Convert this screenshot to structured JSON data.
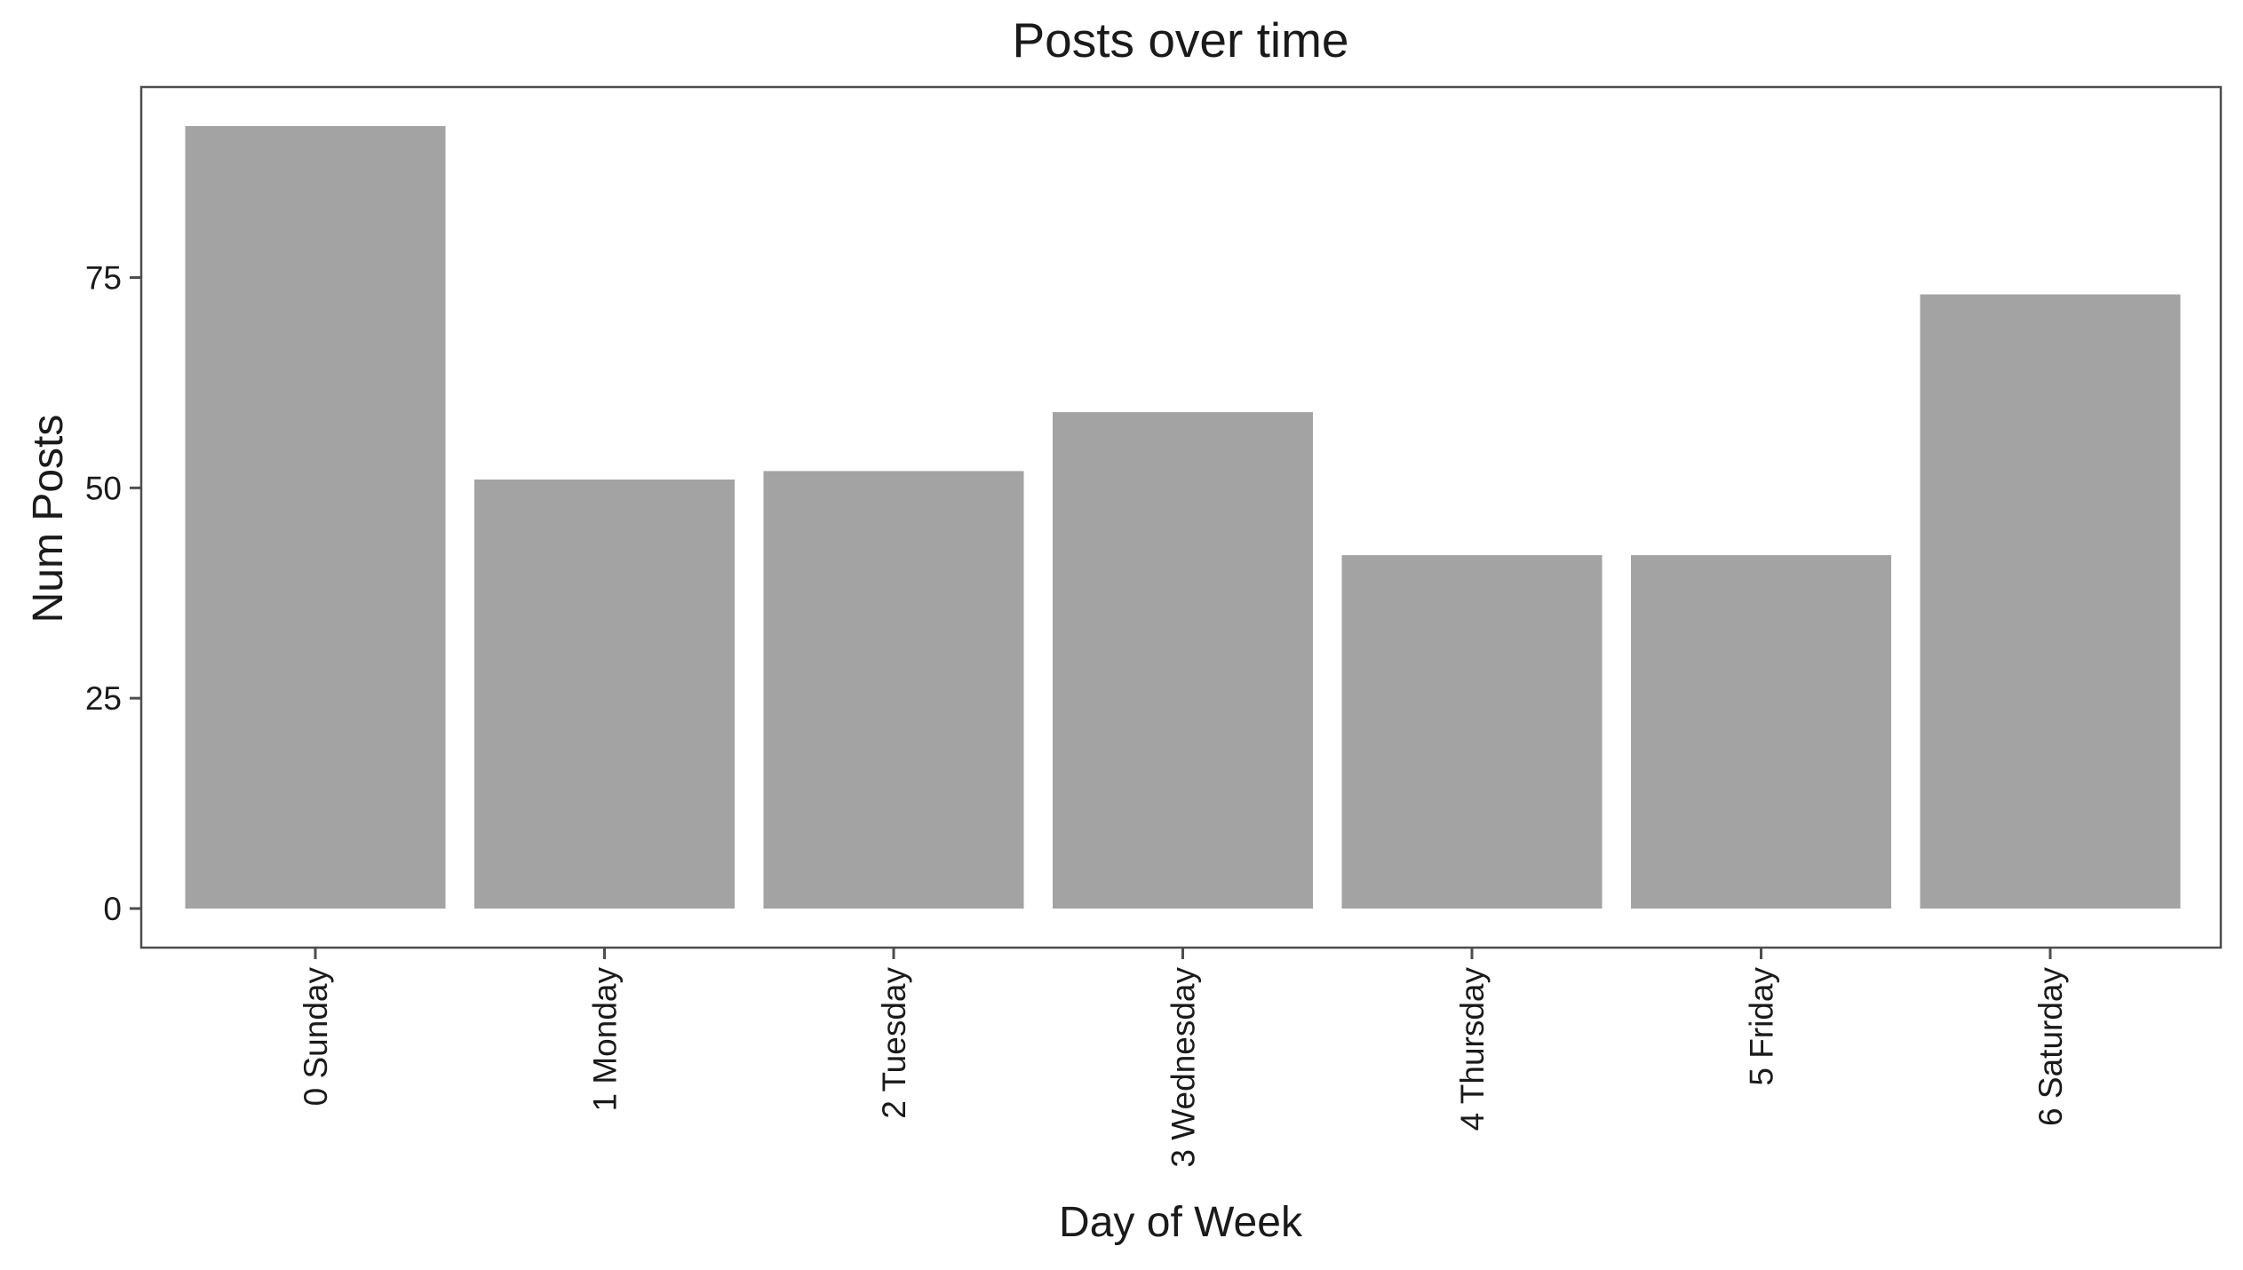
{
  "chart_data": {
    "type": "bar",
    "title": "Posts over time",
    "xlabel": "Day of Week",
    "ylabel": "Num Posts",
    "categories": [
      "0 Sunday",
      "1 Monday",
      "2 Tuesday",
      "3 Wednesday",
      "4 Thursday",
      "5 Friday",
      "6 Saturday"
    ],
    "values": [
      93,
      51,
      52,
      59,
      42,
      42,
      73
    ],
    "yticks": [
      0,
      25,
      50,
      75
    ],
    "ylim": [
      0,
      97.65
    ],
    "grid": false,
    "legend": "none",
    "bar_color": "#a3a3a3",
    "x_tick_label_rotation": "vertical"
  }
}
